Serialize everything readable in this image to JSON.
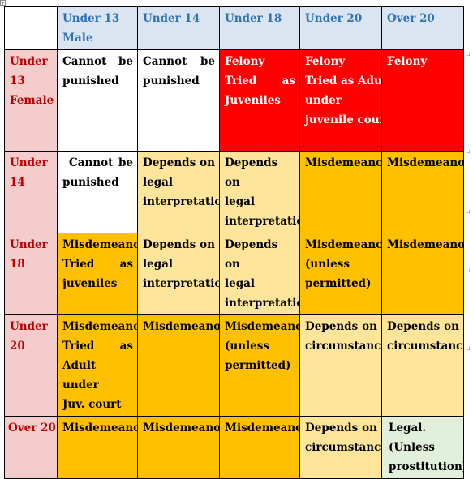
{
  "header": {
    "col1": [
      "Under 13",
      "Male"
    ],
    "col2": "Under 14",
    "col3": "Under 18",
    "col4": "Under 20",
    "col5": "Over 20"
  },
  "rows": [
    {
      "label": [
        "Under",
        "13",
        "Female"
      ],
      "cells": [
        [
          "Cannot be",
          "punished"
        ],
        [
          "Cannot be",
          "punished"
        ],
        [
          "Felony",
          "Tried as",
          "Juveniles"
        ],
        [
          "Felony",
          "Tried as Adult",
          "under",
          "juvenile court",
          ""
        ],
        [
          "Felony",
          ""
        ]
      ]
    },
    {
      "label": [
        "Under",
        "14"
      ],
      "cells": [
        [
          "Cannot be",
          "punished"
        ],
        [
          "Depends on",
          "legal",
          "interpretation"
        ],
        [
          "Depends on",
          "legal",
          "interpretation"
        ],
        [
          "Misdemeanor"
        ],
        [
          "Misdemeanor"
        ]
      ]
    },
    {
      "label": [
        "Under",
        "18"
      ],
      "cells": [
        [
          "Misdemeanor",
          "Tried as",
          "juveniles"
        ],
        [
          "Depends on",
          "legal",
          "interpretation"
        ],
        [
          "Depends on",
          "legal",
          "interpretation"
        ],
        [
          "Misdemeanor",
          "(unless",
          "permitted)"
        ],
        [
          "Misdemeanor"
        ]
      ]
    },
    {
      "label": [
        "Under",
        "20"
      ],
      "cells": [
        [
          "Misdemeanor",
          "Tried as",
          "Adult under",
          "Juv. court"
        ],
        [
          "Misdemeanor"
        ],
        [
          "Misdemeanor",
          "(unless",
          "permitted)"
        ],
        [
          "Depends on",
          "circumstances"
        ],
        [
          "Depends on",
          "circumstances"
        ]
      ]
    },
    {
      "label": [
        "Over 20"
      ],
      "cells": [
        [
          "Misdemeanor"
        ],
        [
          "Misdemeanor"
        ],
        [
          "Misdemeanor"
        ],
        [
          "Depends on",
          "circumstances"
        ],
        [
          "Legal.",
          "(Unless",
          "prostitution)"
        ]
      ]
    }
  ],
  "colors": {
    "header_bg": "#dbe5f1",
    "header_text": "#2e74b5",
    "row_header_bg": "#f4cccc",
    "row_header_text": "#c00000",
    "red": "#ff0000",
    "orange": "#ffc000",
    "light_orange": "#ffe599",
    "light_green": "#e2efda",
    "white": "#ffffff"
  }
}
